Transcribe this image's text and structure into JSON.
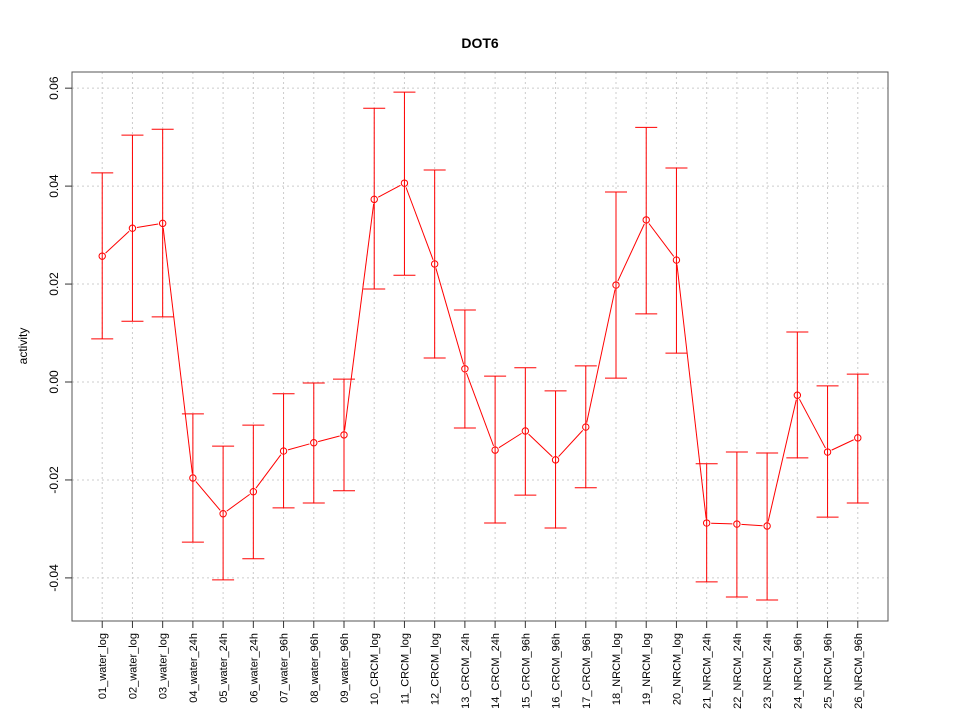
{
  "chart_data": {
    "type": "line",
    "title": "DOT6",
    "xlabel": "",
    "ylabel": "activity",
    "ylim": [
      -0.0488,
      0.0633
    ],
    "xlim": [
      0,
      27
    ],
    "grid": true,
    "yticks": [
      -0.04,
      -0.02,
      0.0,
      0.02,
      0.04,
      0.06
    ],
    "ytick_labels": [
      "-0.04",
      "-0.02",
      "0.00",
      "0.02",
      "0.04",
      "0.06"
    ],
    "color": "#ff0000",
    "categories": [
      "01_water_log",
      "02_water_log",
      "03_water_log",
      "04_water_24h",
      "05_water_24h",
      "06_water_24h",
      "07_water_96h",
      "08_water_96h",
      "09_water_96h",
      "10_CRCM_log",
      "11_CRCM_log",
      "12_CRCM_log",
      "13_CRCM_24h",
      "14_CRCM_24h",
      "15_CRCM_96h",
      "16_CRCM_96h",
      "17_CRCM_96h",
      "18_NRCM_log",
      "19_NRCM_log",
      "20_NRCM_log",
      "21_NRCM_24h",
      "22_NRCM_24h",
      "23_NRCM_24h",
      "24_NRCM_96h",
      "25_NRCM_96h",
      "26_NRCM_96h"
    ],
    "values": [
      0.0257,
      0.0314,
      0.0324,
      -0.0196,
      -0.0269,
      -0.0224,
      -0.0141,
      -0.0124,
      -0.0108,
      0.0373,
      0.0406,
      0.0241,
      0.0027,
      -0.0139,
      -0.01,
      -0.0159,
      -0.0092,
      0.0198,
      0.0331,
      0.0249,
      -0.0288,
      -0.029,
      -0.0294,
      -0.0027,
      -0.0143,
      -0.0114
    ],
    "upper": [
      0.0427,
      0.0504,
      0.0516,
      -0.0065,
      -0.0131,
      -0.0088,
      -0.0024,
      -0.0002,
      0.0006,
      0.0559,
      0.0592,
      0.0433,
      0.0147,
      0.0012,
      0.0029,
      -0.0018,
      0.0033,
      0.0388,
      0.052,
      0.0437,
      -0.0167,
      -0.0143,
      -0.0145,
      0.0102,
      -0.0008,
      0.0016
    ],
    "lower": [
      0.0088,
      0.0124,
      0.0133,
      -0.0327,
      -0.0404,
      -0.0361,
      -0.0257,
      -0.0247,
      -0.0222,
      0.019,
      0.0218,
      0.0049,
      -0.0094,
      -0.0288,
      -0.0231,
      -0.0298,
      -0.0216,
      0.0008,
      0.0139,
      0.0059,
      -0.0408,
      -0.0439,
      -0.0445,
      -0.0155,
      -0.0276,
      -0.0247
    ]
  }
}
